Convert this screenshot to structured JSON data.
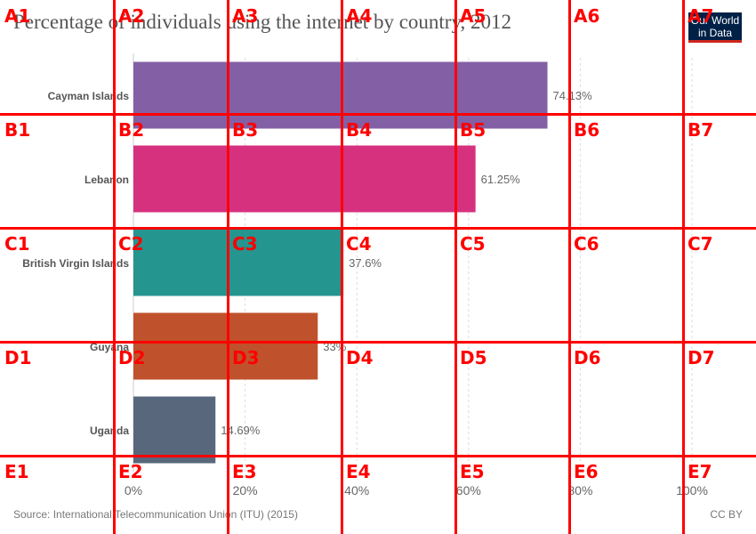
{
  "header": {
    "title": "Percentage of individuals using the internet by country, 2012",
    "logo_line1": "Our World",
    "logo_line2": "in Data"
  },
  "footer": {
    "source": "Source: International Telecommunication Union (ITU) (2015)",
    "license": "CC BY"
  },
  "colors": {
    "cayman": "#8360a6",
    "lebanon": "#d6317e",
    "bvi": "#24958f",
    "guyana": "#bf522c",
    "uganda": "#58677c",
    "grid_overlay": "#ff0000"
  },
  "chart_data": {
    "type": "bar",
    "orientation": "horizontal",
    "title": "Percentage of individuals using the internet by country, 2012",
    "categories": [
      "Cayman Islands",
      "Lebanon",
      "British Virgin Islands",
      "Guyana",
      "Uganda"
    ],
    "values": [
      74.13,
      61.25,
      37.6,
      33,
      14.69
    ],
    "value_labels": [
      "74.13%",
      "61.25%",
      "37.6%",
      "33%",
      "14.69%"
    ],
    "bar_colors": [
      "#8360a6",
      "#d6317e",
      "#24958f",
      "#bf522c",
      "#58677c"
    ],
    "x_ticks": [
      0,
      20,
      40,
      60,
      80,
      100
    ],
    "x_tick_labels": [
      "0%",
      "20%",
      "40%",
      "60%",
      "80%",
      "100%"
    ],
    "xlim": [
      0,
      100
    ],
    "grid": true
  },
  "grid_overlay": {
    "cols": [
      "1",
      "2",
      "3",
      "4",
      "5",
      "6",
      "7"
    ],
    "rows": [
      "A",
      "B",
      "C",
      "D",
      "E"
    ]
  }
}
